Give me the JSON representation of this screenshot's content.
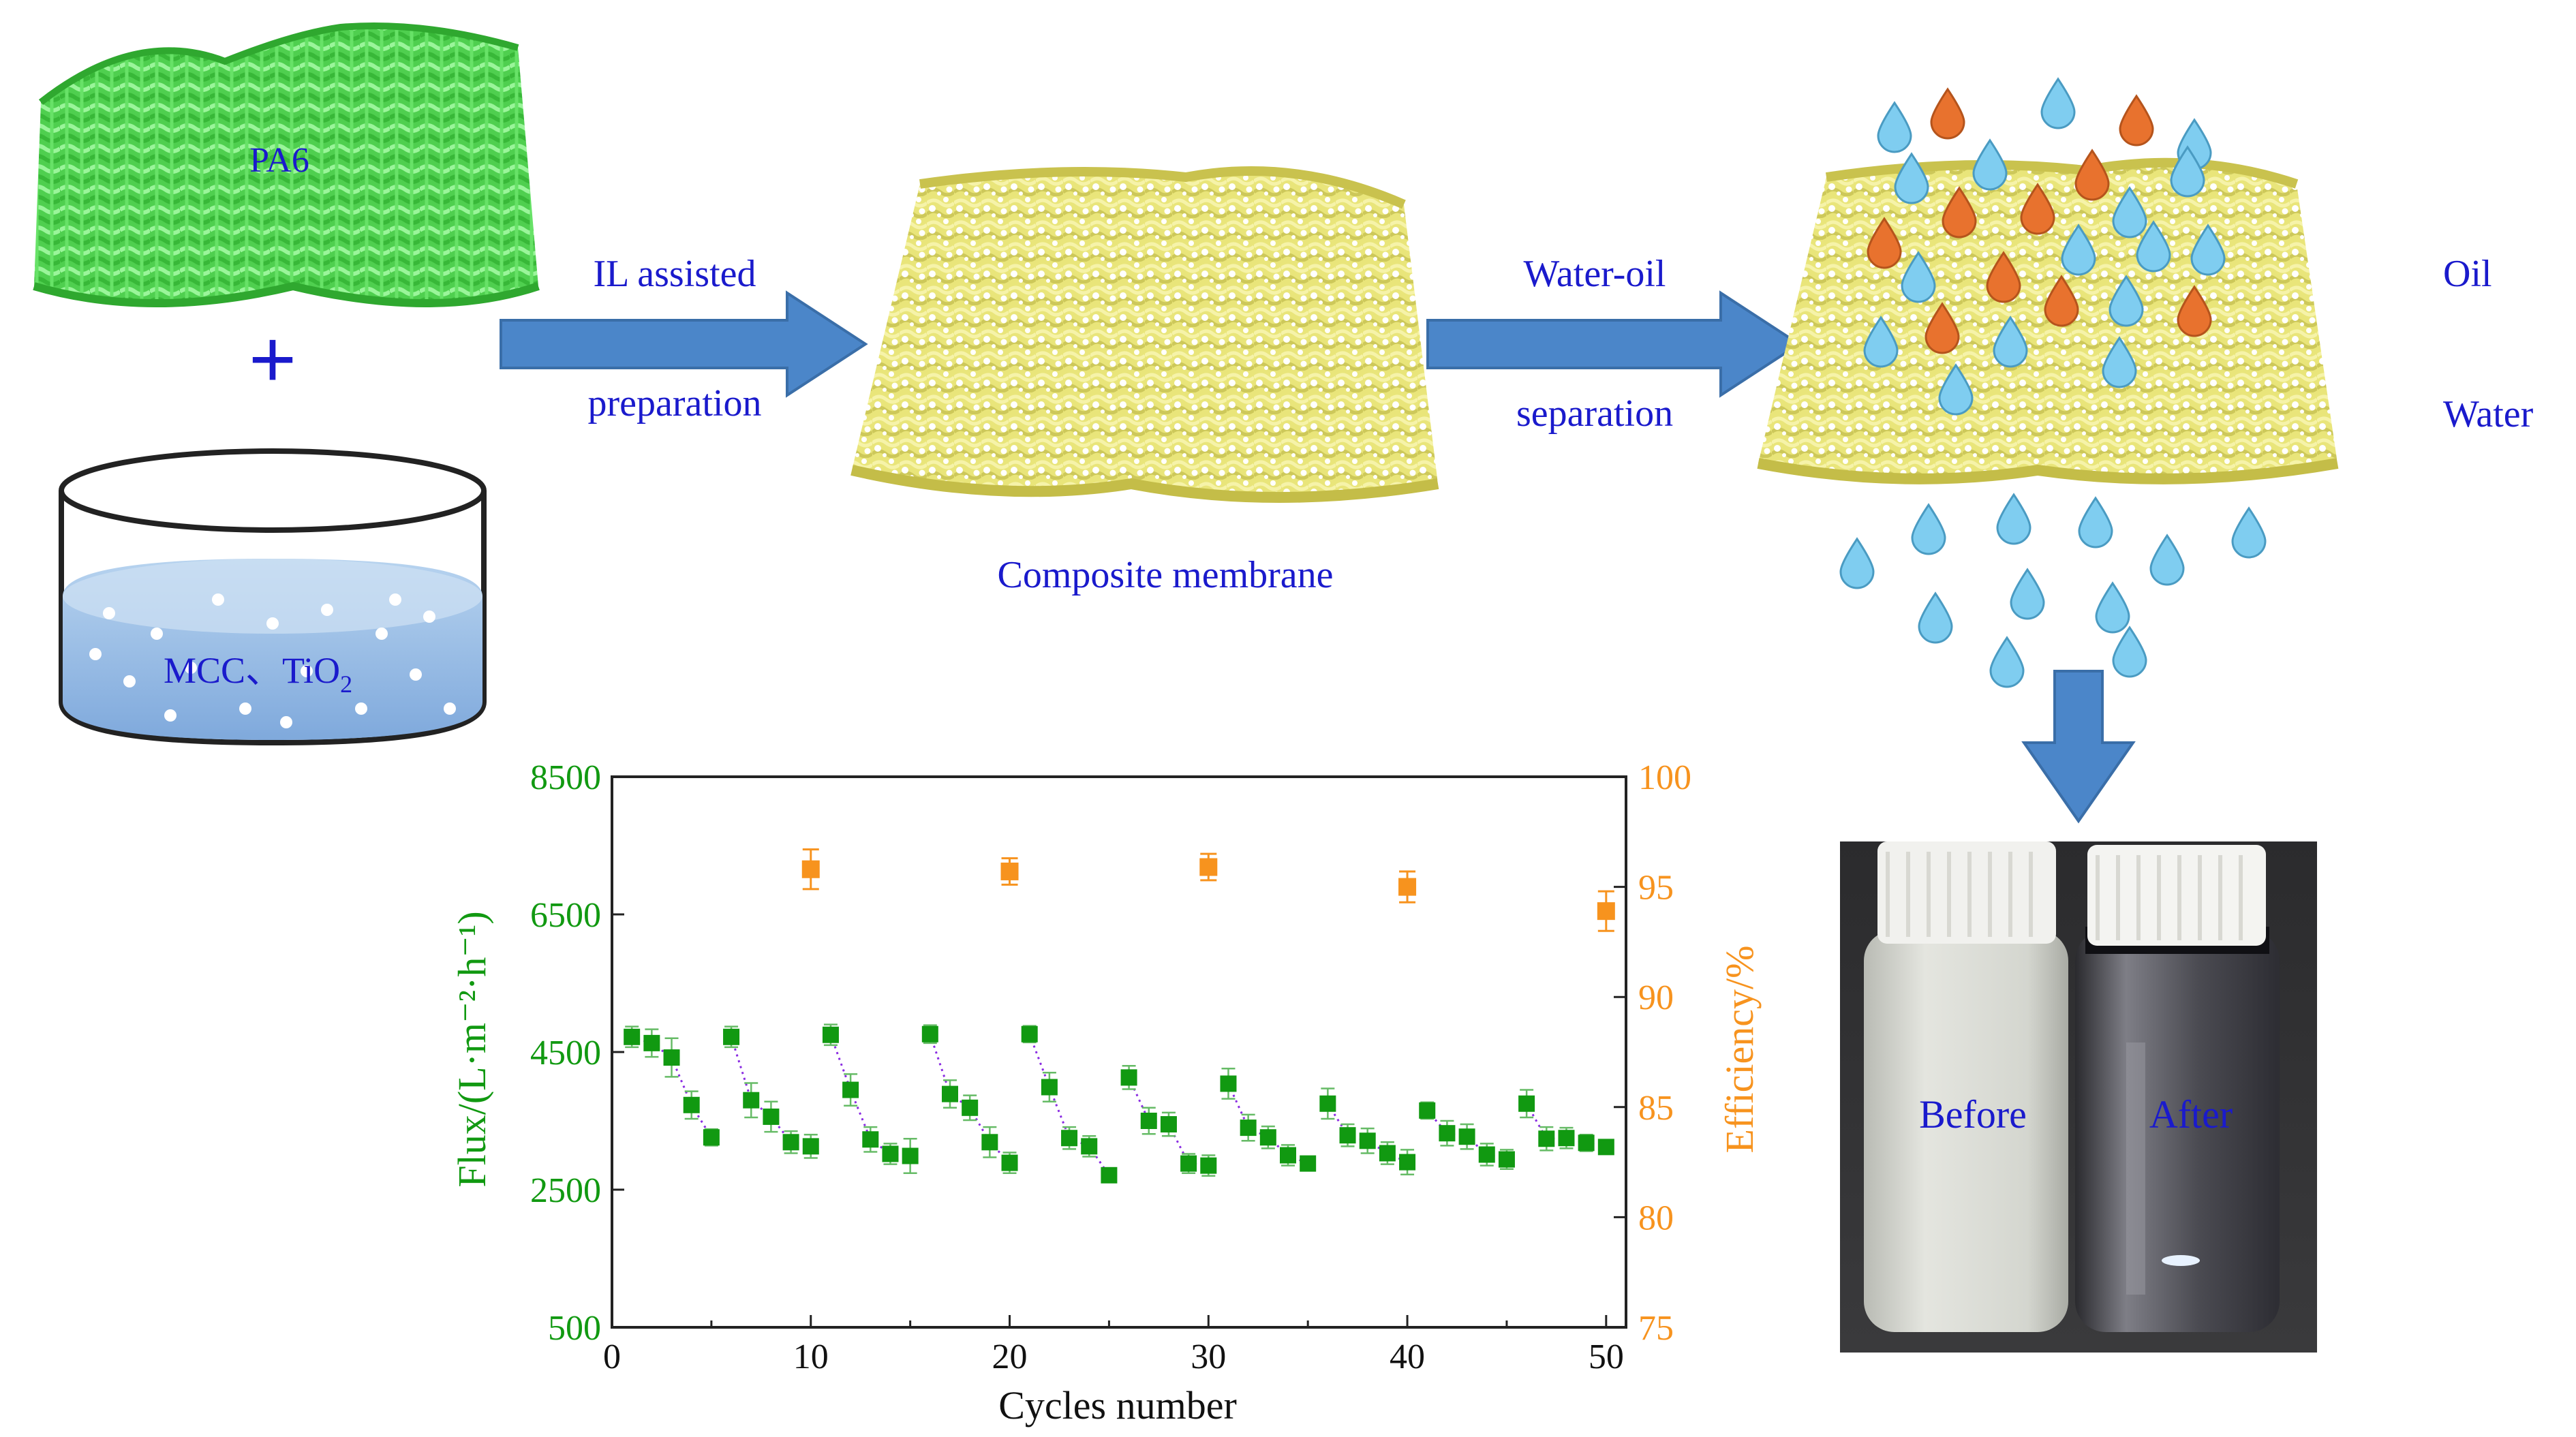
{
  "labels": {
    "pa6": "PA6",
    "plus": "+",
    "mcc": "MCC、TiO",
    "mcc_sub": "2",
    "arrow1_line1": "IL assisted",
    "arrow1_line2": "preparation",
    "composite": "Composite membrane",
    "arrow2_line1": "Water-oil",
    "arrow2_line2": "separation",
    "legend_oil": "Oil",
    "legend_water": "Water",
    "photo_before": "Before",
    "photo_after": "After"
  },
  "colors": {
    "mesh_green": "#5ee05e",
    "membrane_yellow": "#ecea7c",
    "arrow_blue": "#4b86c9",
    "oil_orange": "#e8722e",
    "water_blue": "#7fcdf0",
    "label_blue": "#1a1acc",
    "flux_green": "#119911",
    "efficiency_orange": "#f7931e"
  },
  "icons": [
    "droplet-icon",
    "plus-icon",
    "arrow-right-icon",
    "arrow-down-icon"
  ],
  "chart_data": {
    "type": "scatter",
    "xlabel": "Cycles number",
    "ylabel_left": "Flux/(L·m⁻²·h⁻¹)",
    "ylabel_right": "Efficiency/%",
    "xlim": [
      0,
      51
    ],
    "ylim_left": [
      500,
      8500
    ],
    "ylim_right": [
      75,
      100
    ],
    "x_ticks": [
      0,
      10,
      20,
      30,
      40,
      50
    ],
    "y_ticks_left": [
      500,
      2500,
      4500,
      6500,
      8500
    ],
    "y_ticks_right": [
      75,
      80,
      85,
      90,
      95,
      100
    ],
    "series": [
      {
        "name": "Flux",
        "axis": "left",
        "x": [
          1,
          2,
          3,
          4,
          5,
          6,
          7,
          8,
          9,
          10,
          11,
          12,
          13,
          14,
          15,
          16,
          17,
          18,
          19,
          20,
          21,
          22,
          23,
          24,
          25,
          26,
          27,
          28,
          29,
          30,
          31,
          32,
          33,
          34,
          35,
          36,
          37,
          38,
          39,
          40,
          41,
          42,
          43,
          44,
          45,
          46,
          47,
          48,
          49,
          50
        ],
        "values": [
          4720,
          4630,
          4420,
          3730,
          3260,
          4720,
          3800,
          3560,
          3190,
          3130,
          4750,
          3950,
          3230,
          3020,
          2990,
          4760,
          3890,
          3690,
          3190,
          2890,
          4760,
          3990,
          3250,
          3130,
          2710,
          4130,
          3500,
          3450,
          2880,
          2850,
          4040,
          3400,
          3260,
          3000,
          2880,
          3750,
          3290,
          3210,
          3030,
          2900,
          3650,
          3320,
          3270,
          3010,
          2940,
          3750,
          3240,
          3250,
          3180,
          3120
        ],
        "errors": [
          150,
          200,
          280,
          200,
          120,
          150,
          250,
          220,
          160,
          170,
          150,
          230,
          180,
          150,
          250,
          130,
          200,
          180,
          220,
          150,
          120,
          210,
          160,
          150,
          90,
          170,
          190,
          170,
          140,
          150,
          220,
          190,
          160,
          150,
          100,
          220,
          160,
          180,
          160,
          180,
          120,
          180,
          180,
          160,
          140,
          200,
          170,
          150,
          120,
          100
        ]
      },
      {
        "name": "Efficiency",
        "axis": "right",
        "x": [
          10,
          20,
          30,
          40,
          50
        ],
        "values": [
          95.8,
          95.7,
          95.9,
          95.0,
          93.9
        ],
        "errors": [
          0.9,
          0.6,
          0.6,
          0.7,
          0.9
        ]
      }
    ]
  }
}
